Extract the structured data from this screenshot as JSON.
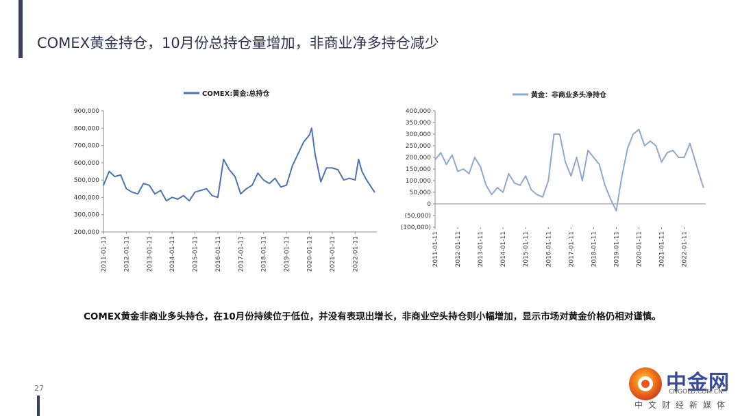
{
  "title": "COMEX黄金持仓，10月份总持仓量增加，非商业净多持仓减少",
  "description": "COMEX黄金非商业多头持仓，在10月份持续位于低位，并没有表现出增长，非商业空头持仓则小幅增加，显示市场对黄金价格仍相对谨慎。",
  "page_number": "27",
  "logo": {
    "name": "中金网",
    "url": "CNGOLD.COM.CN",
    "tagline": "中文财经新媒体"
  },
  "colors": {
    "accent_bar": "#3c3f5a",
    "left_series": "#4a72b4",
    "right_series": "#8ea8d2",
    "negative_tick": "#d7262c"
  },
  "chart_data": [
    {
      "type": "line",
      "title": "",
      "xlabel": "",
      "ylabel": "",
      "ylim": [
        200000,
        900000
      ],
      "yticks": [
        "200,000",
        "300,000",
        "400,000",
        "500,000",
        "600,000",
        "700,000",
        "800,000",
        "900,000"
      ],
      "xticks": [
        "2011-01-11",
        "2012-01-11",
        "2013-01-11",
        "2014-01-11",
        "2015-01-11",
        "2016-01-11",
        "2017-01-11",
        "2018-01-11",
        "2019-01-11",
        "2020-01-11",
        "2021-01-11",
        "2022-01-11"
      ],
      "legend_position": "top",
      "series": [
        {
          "name": "COMEX:黄金:总持仓",
          "x": [
            2011.0,
            2011.25,
            2011.5,
            2011.75,
            2012.0,
            2012.25,
            2012.5,
            2012.75,
            2013.0,
            2013.25,
            2013.5,
            2013.75,
            2014.0,
            2014.25,
            2014.5,
            2014.75,
            2015.0,
            2015.25,
            2015.5,
            2015.75,
            2016.0,
            2016.25,
            2016.5,
            2016.75,
            2017.0,
            2017.25,
            2017.5,
            2017.75,
            2018.0,
            2018.25,
            2018.5,
            2018.75,
            2019.0,
            2019.25,
            2019.5,
            2019.75,
            2020.0,
            2020.1,
            2020.25,
            2020.5,
            2020.75,
            2021.0,
            2021.25,
            2021.5,
            2021.75,
            2022.0,
            2022.15,
            2022.3,
            2022.5,
            2022.7,
            2022.85
          ],
          "y": [
            470000,
            550000,
            520000,
            530000,
            450000,
            430000,
            420000,
            480000,
            470000,
            420000,
            440000,
            380000,
            400000,
            390000,
            410000,
            380000,
            430000,
            440000,
            450000,
            410000,
            400000,
            620000,
            560000,
            520000,
            420000,
            450000,
            470000,
            540000,
            500000,
            480000,
            510000,
            460000,
            470000,
            580000,
            650000,
            720000,
            760000,
            800000,
            650000,
            490000,
            570000,
            570000,
            560000,
            500000,
            510000,
            500000,
            620000,
            550000,
            500000,
            460000,
            430000
          ]
        }
      ]
    },
    {
      "type": "line",
      "title": "",
      "xlabel": "",
      "ylabel": "",
      "ylim": [
        -100000,
        400000
      ],
      "yticks": [
        "(100,000)",
        "(50,000)",
        "0",
        "50,000",
        "100,000",
        "150,000",
        "200,000",
        "250,000",
        "300,000",
        "350,000",
        "400,000"
      ],
      "xticks": [
        "2011-01-11",
        "2012-01-11",
        "2013-01-11",
        "2014-01-11",
        "2015-01-11",
        "2016-01-11",
        "2017-01-11",
        "2018-01-11",
        "2019-01-11",
        "2020-01-11",
        "2021-01-11",
        "2022-01-11"
      ],
      "legend_position": "top",
      "series": [
        {
          "name": "黄金：非商业多头净持仓",
          "x": [
            2011.0,
            2011.25,
            2011.5,
            2011.75,
            2012.0,
            2012.25,
            2012.5,
            2012.75,
            2013.0,
            2013.25,
            2013.5,
            2013.75,
            2014.0,
            2014.25,
            2014.5,
            2014.75,
            2015.0,
            2015.25,
            2015.5,
            2015.75,
            2016.0,
            2016.25,
            2016.5,
            2016.75,
            2017.0,
            2017.25,
            2017.5,
            2017.75,
            2018.0,
            2018.25,
            2018.5,
            2018.75,
            2019.0,
            2019.25,
            2019.5,
            2019.75,
            2020.0,
            2020.25,
            2020.5,
            2020.75,
            2021.0,
            2021.25,
            2021.5,
            2021.75,
            2022.0,
            2022.25,
            2022.5,
            2022.75,
            2022.85
          ],
          "y": [
            190000,
            220000,
            170000,
            210000,
            140000,
            150000,
            130000,
            200000,
            160000,
            80000,
            40000,
            70000,
            50000,
            130000,
            90000,
            80000,
            120000,
            60000,
            40000,
            30000,
            100000,
            300000,
            300000,
            180000,
            120000,
            200000,
            100000,
            230000,
            200000,
            170000,
            80000,
            20000,
            -30000,
            120000,
            240000,
            300000,
            320000,
            250000,
            270000,
            250000,
            180000,
            220000,
            230000,
            200000,
            200000,
            260000,
            180000,
            100000,
            70000
          ]
        }
      ]
    }
  ]
}
